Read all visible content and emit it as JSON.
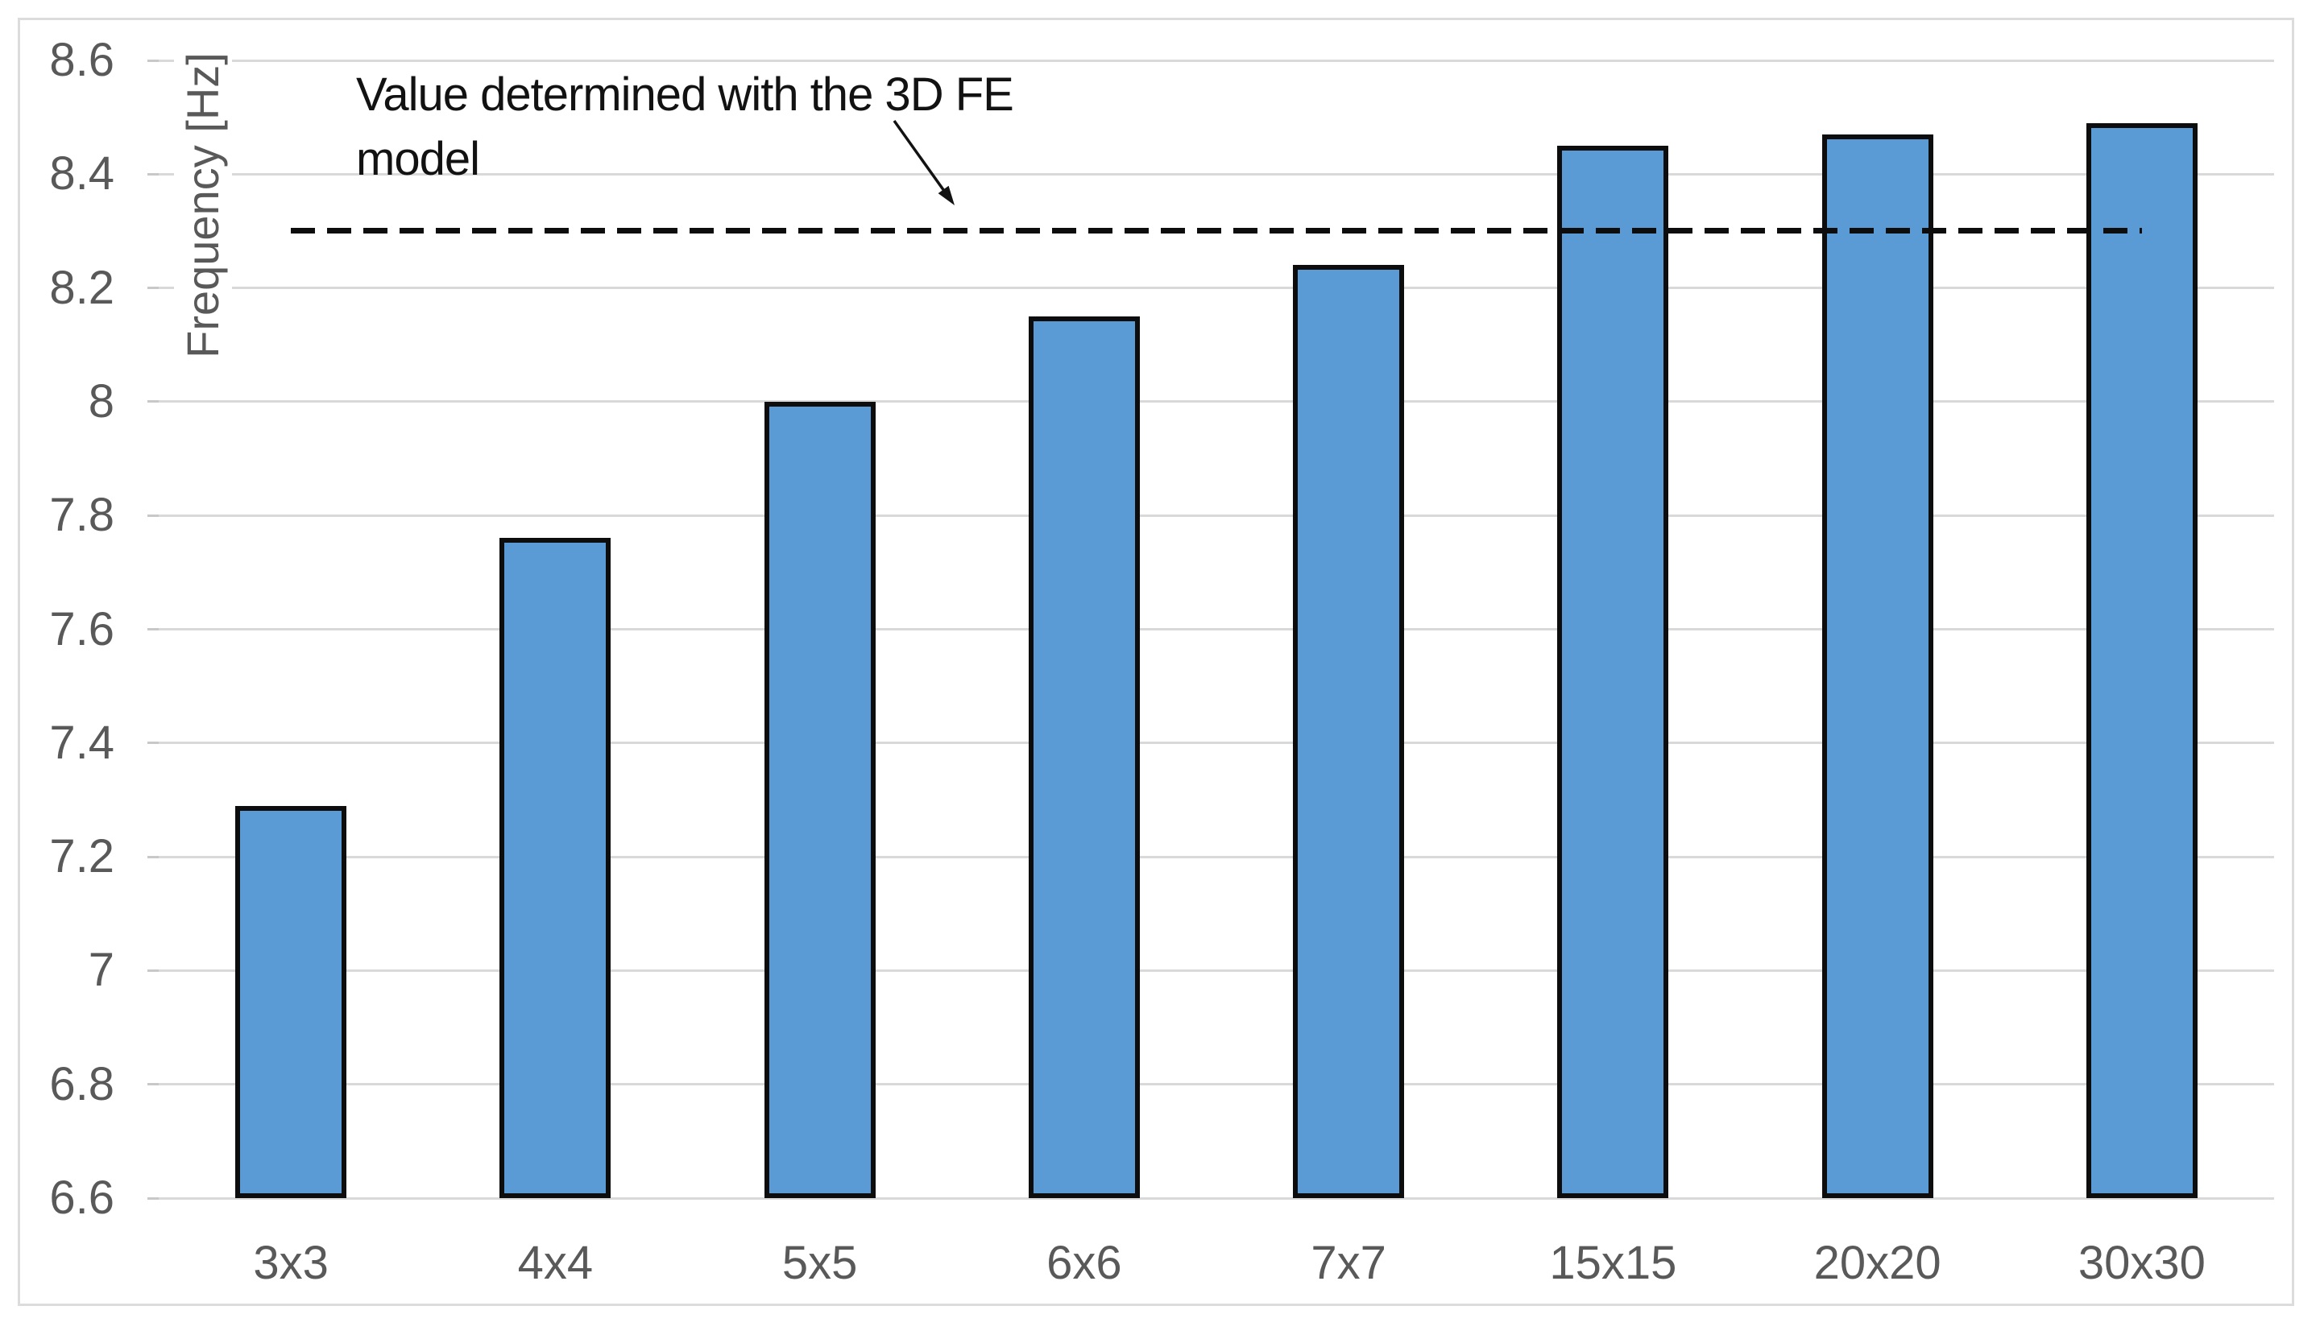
{
  "chart_data": {
    "type": "bar",
    "title": "",
    "categories": [
      "3x3",
      "4x4",
      "5x5",
      "6x6",
      "7x7",
      "15x15",
      "20x20",
      "30x30"
    ],
    "values": [
      7.29,
      7.76,
      8.0,
      8.15,
      8.24,
      8.45,
      8.47,
      8.49
    ],
    "xlabel": "",
    "ylabel": "Frequency [Hz]",
    "ylim": [
      6.6,
      8.6
    ],
    "ytick_step": 0.2,
    "yticks": [
      "8.6",
      "8.4",
      "8.2",
      "8",
      "7.8",
      "7.6",
      "7.4",
      "7.2",
      "7",
      "6.8",
      "6.6"
    ],
    "grid": true,
    "legend": "none",
    "reference_line": {
      "value": 8.3,
      "style": "dashed"
    },
    "annotation": {
      "line1": "Value determined with the 3D FE",
      "line2": "model"
    },
    "colors": {
      "bar_fill": "#5B9BD5",
      "bar_border": "#0d0d0d",
      "gridline": "#D9D9D9",
      "tick_mark": "#C8C8C8",
      "axis_text": "#595959",
      "annotation_text": "#121212",
      "reference_line": "#0d0d0d",
      "frame_border": "#DCDCDC"
    }
  }
}
